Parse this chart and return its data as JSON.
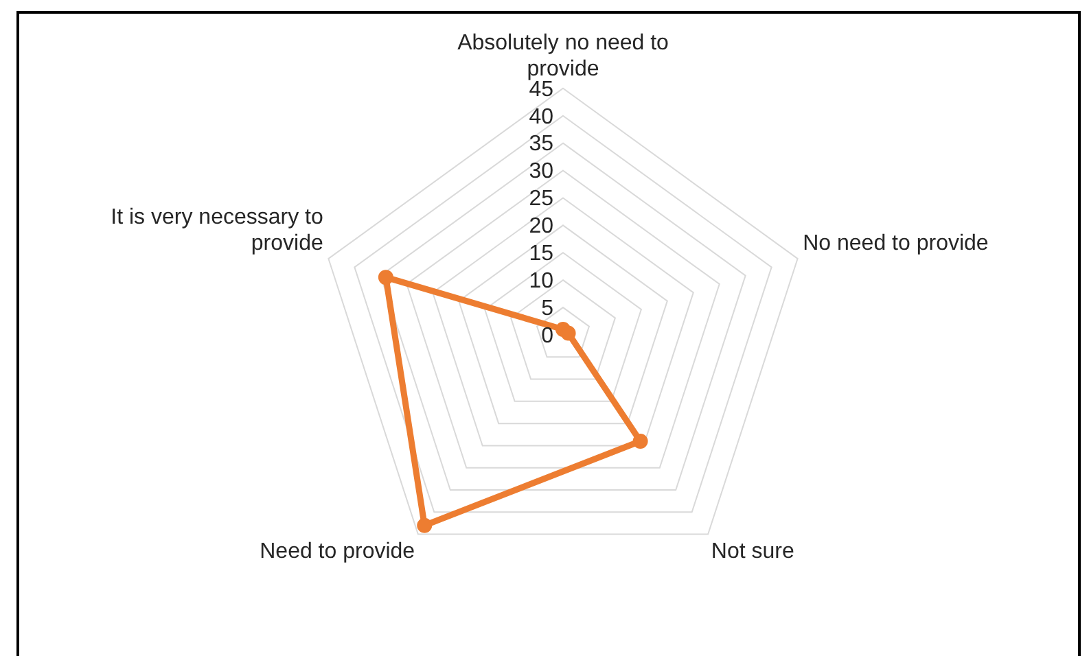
{
  "chart_data": {
    "type": "radar",
    "categories": [
      "Absolutely no need to provide",
      "No need to provide",
      "Not sure",
      "Need to provide",
      "It is very necessary to provide"
    ],
    "series": [
      {
        "color": "#ed7d31",
        "values": [
          1,
          1,
          24,
          43,
          34
        ]
      }
    ],
    "ylim": [
      0,
      45
    ],
    "yticks": [
      0,
      5,
      10,
      15,
      20,
      25,
      30,
      35,
      40,
      45
    ],
    "grid": true,
    "marker": "circle"
  }
}
